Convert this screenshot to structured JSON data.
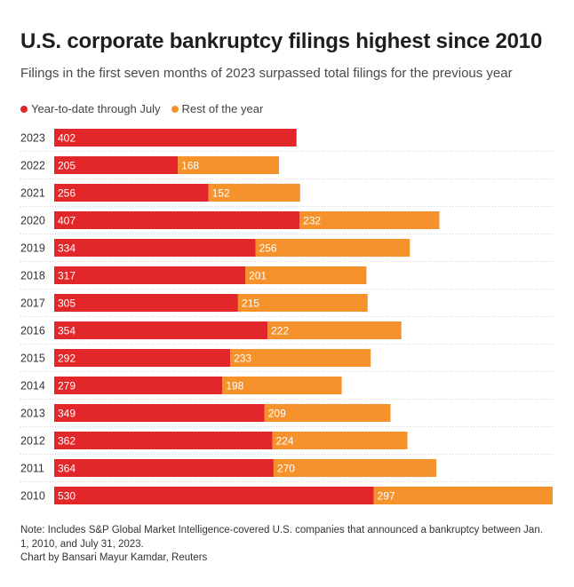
{
  "title": "U.S. corporate bankruptcy filings highest since 2010",
  "subtitle": "Filings in the first seven months of 2023 surpassed total filings for the previous year",
  "note": "Note: Includes S&P Global Market Intelligence-covered U.S. companies that announced a bankruptcy between Jan. 1, 2010, and July 31, 2023.",
  "credit": "Chart by Bansari Mayur Kamdar, Reuters",
  "colors": {
    "ytd": "#e2272a",
    "rest": "#f5922c",
    "grid": "#cfcfcf"
  },
  "chart_data": {
    "type": "bar",
    "orientation": "horizontal",
    "stacked": true,
    "legend_position": "top-left",
    "categories": [
      "2023",
      "2022",
      "2021",
      "2020",
      "2019",
      "2018",
      "2017",
      "2016",
      "2015",
      "2014",
      "2013",
      "2012",
      "2011",
      "2010"
    ],
    "series": [
      {
        "name": "Year-to-date through July",
        "values": [
          402,
          205,
          256,
          407,
          334,
          317,
          305,
          354,
          292,
          279,
          349,
          362,
          364,
          530
        ]
      },
      {
        "name": "Rest of the year",
        "values": [
          null,
          168,
          152,
          232,
          256,
          201,
          215,
          222,
          233,
          198,
          209,
          224,
          270,
          297
        ]
      }
    ],
    "xlim": [
      0,
      827
    ]
  }
}
